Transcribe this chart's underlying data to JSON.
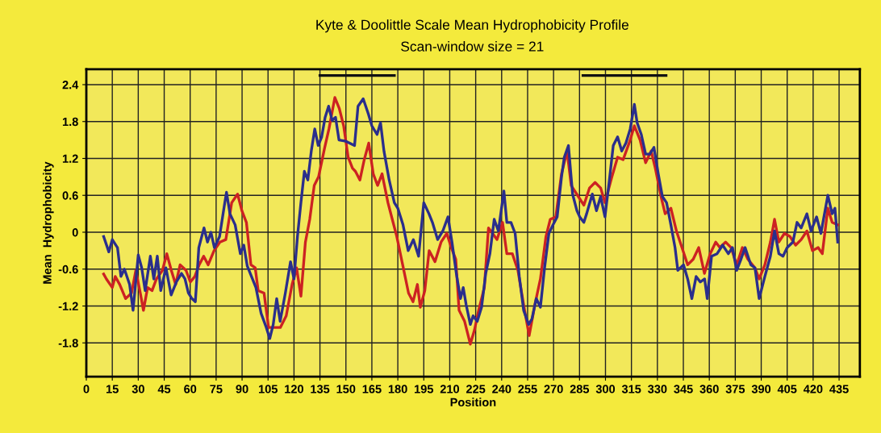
{
  "chart_data": {
    "type": "line",
    "title": "Kyte & Doolittle Scale Mean Hydrophobicity Profile",
    "subtitle": "Scan-window size = 21",
    "xlabel": "Position",
    "ylabel": "Mean  Hydrophobicity",
    "xlim": [
      0,
      447
    ],
    "ylim": [
      -2.35,
      2.65
    ],
    "xticks": [
      0,
      15,
      30,
      45,
      60,
      75,
      90,
      105,
      120,
      135,
      150,
      165,
      180,
      195,
      210,
      225,
      240,
      255,
      270,
      285,
      300,
      315,
      330,
      345,
      360,
      375,
      390,
      405,
      420,
      435
    ],
    "yticks": [
      -1.8,
      -1.2,
      -0.6,
      0,
      0.6,
      1.2,
      1.8,
      2.4
    ],
    "grid": true,
    "legend": false,
    "marker": "none",
    "line_style": "solid",
    "series": [
      {
        "color": "#111111",
        "x": [
          135,
          178
        ],
        "values": [
          2.55,
          2.55
        ]
      },
      {
        "color": "#111111",
        "x": [
          287,
          335
        ],
        "values": [
          2.55,
          2.55
        ]
      },
      {
        "color": "#cc2222",
        "x": [
          10,
          11.6,
          15,
          16.7,
          19.3,
          22.7,
          26.1,
          28.6,
          31.2,
          33,
          35.4,
          38,
          40.5,
          44,
          46.5,
          49.1,
          51.6,
          54.2,
          57.6,
          60.1,
          62.7,
          65.2,
          67.8,
          70.4,
          73.8,
          77.2,
          80.6,
          84,
          87.4,
          89.9,
          92.5,
          95.1,
          97.6,
          99.3,
          102.7,
          105.3,
          108.7,
          112.1,
          115.5,
          118.9,
          121.5,
          124,
          126.6,
          129.1,
          131.7,
          134.2,
          137.6,
          140.2,
          143.6,
          146.2,
          148.7,
          151.3,
          153.8,
          155.5,
          158.1,
          160.6,
          163.2,
          165.8,
          168.3,
          170.9,
          174.3,
          176.8,
          179.4,
          182.8,
          186.2,
          188.8,
          191.3,
          193,
          195.6,
          198.1,
          201.5,
          205,
          208.3,
          210.9,
          213.5,
          215.4,
          218.6,
          221.9,
          224.3,
          226.7,
          230,
          232.4,
          234.8,
          237.3,
          240.5,
          243,
          246.2,
          249.4,
          252.7,
          255.9,
          259.2,
          262.4,
          265.6,
          268.1,
          271.3,
          274.6,
          277.8,
          280.2,
          284.3,
          287.5,
          290.8,
          294,
          297.2,
          299.7,
          303.7,
          307,
          310.2,
          314.3,
          316.7,
          320,
          323.2,
          326.4,
          328.8,
          332.1,
          334.5,
          337.8,
          341,
          344.2,
          347.5,
          350.7,
          353.9,
          357.2,
          360.5,
          363.7,
          366.1,
          369.4,
          372.6,
          375.8,
          379.1,
          382.3,
          386.4,
          388.8,
          392.1,
          395.3,
          397.7,
          400.2,
          403.4,
          406.6,
          409.9,
          413.1,
          416.4,
          419.6,
          422.9,
          425.3,
          428.5,
          431,
          434.2
        ],
        "values": [
          -0.68,
          -0.76,
          -0.9,
          -0.72,
          -0.85,
          -1.08,
          -0.99,
          -0.62,
          -0.99,
          -1.27,
          -0.9,
          -0.95,
          -0.76,
          -0.62,
          -0.35,
          -0.62,
          -0.85,
          -0.53,
          -0.62,
          -0.81,
          -0.72,
          -0.53,
          -0.39,
          -0.53,
          -0.3,
          -0.16,
          -0.12,
          0.48,
          0.62,
          0.35,
          0.16,
          -0.53,
          -0.58,
          -0.95,
          -0.99,
          -1.55,
          -1.55,
          -1.55,
          -1.36,
          -0.85,
          -0.58,
          -1.04,
          -0.16,
          0.21,
          0.76,
          0.9,
          1.36,
          1.68,
          2.19,
          2.01,
          1.73,
          1.22,
          1.04,
          0.99,
          0.85,
          1.18,
          1.45,
          0.95,
          0.76,
          0.95,
          0.48,
          0.21,
          -0.07,
          -0.53,
          -0.99,
          -1.13,
          -0.85,
          -1.22,
          -0.95,
          -0.3,
          -0.48,
          -0.16,
          -0.02,
          -0.25,
          -0.44,
          -1.27,
          -1.45,
          -1.82,
          -1.59,
          -1.27,
          -0.9,
          0.07,
          -0.02,
          -0.12,
          0.16,
          -0.35,
          -0.35,
          -0.62,
          -1.18,
          -1.68,
          -1.18,
          -0.76,
          -0.07,
          0.21,
          0.25,
          0.95,
          1.32,
          0.76,
          0.58,
          0.44,
          0.72,
          0.81,
          0.72,
          0.48,
          0.9,
          1.22,
          1.18,
          1.5,
          1.73,
          1.5,
          1.13,
          1.32,
          1.04,
          0.58,
          0.3,
          0.39,
          0.02,
          -0.25,
          -0.53,
          -0.44,
          -0.25,
          -0.67,
          -0.35,
          -0.16,
          -0.25,
          -0.16,
          -0.25,
          -0.53,
          -0.25,
          -0.44,
          -0.58,
          -0.76,
          -0.53,
          -0.16,
          0.21,
          -0.16,
          -0.02,
          -0.07,
          -0.21,
          -0.12,
          0.02,
          -0.3,
          -0.25,
          -0.35,
          0.39,
          0.16,
          0.12
        ]
      },
      {
        "color": "#2a2e8c",
        "x": [
          10,
          13,
          15,
          18,
          20,
          22,
          25,
          27,
          30,
          32,
          34,
          37,
          39,
          41,
          43,
          46,
          49,
          52,
          55,
          57,
          59,
          61,
          63,
          65,
          68,
          70,
          72,
          74,
          77,
          80,
          81,
          83,
          86,
          89,
          91,
          93,
          96,
          98,
          101,
          104,
          106,
          108,
          110,
          112,
          115,
          118,
          120,
          122,
          124,
          126,
          128,
          130,
          132,
          134,
          136,
          138,
          140,
          142,
          144,
          146,
          150,
          155,
          157,
          160,
          163,
          165,
          168,
          170,
          172,
          175,
          178,
          180,
          183,
          186,
          189,
          192,
          195,
          198,
          200,
          203,
          206,
          209,
          211.3,
          213.8,
          216.2,
          217.8,
          219.5,
          221.9,
          223.5,
          225.9,
          228.4,
          230.8,
          233.2,
          235.7,
          238.1,
          241.3,
          243,
          245.4,
          247.8,
          250.2,
          252.7,
          255.6,
          257.5,
          260,
          262.4,
          264.8,
          267.3,
          269.7,
          272.1,
          274.6,
          276.2,
          278.6,
          281,
          283.5,
          285.1,
          287.5,
          289.1,
          292.4,
          294.8,
          297.2,
          299.7,
          302.1,
          304.5,
          307,
          309.4,
          311.8,
          314.3,
          316.7,
          318.3,
          320.7,
          323.2,
          325.6,
          328,
          330.5,
          332.9,
          335.3,
          337.8,
          340.2,
          341.8,
          345.1,
          347.5,
          349.9,
          352.4,
          354.8,
          357.3,
          358.8,
          361.3,
          364.5,
          367.7,
          371,
          373.4,
          375.8,
          378.3,
          380.7,
          384,
          386.4,
          388.8,
          392.1,
          395.3,
          397.7,
          400.2,
          402.6,
          405,
          408.3,
          410.7,
          413.1,
          416.4,
          418.8,
          422,
          424.5,
          428.5,
          431,
          432.6,
          434.2
        ],
        "values": [
          -0.07,
          -0.32,
          -0.12,
          -0.25,
          -0.72,
          -0.6,
          -0.85,
          -1.27,
          -0.37,
          -0.58,
          -0.95,
          -0.39,
          -0.76,
          -0.39,
          -0.95,
          -0.58,
          -1.02,
          -0.81,
          -0.67,
          -0.76,
          -0.99,
          -1.08,
          -1.13,
          -0.25,
          0.07,
          -0.16,
          0,
          -0.25,
          -0.07,
          0.48,
          0.65,
          0.3,
          0.12,
          -0.35,
          -0.21,
          -0.55,
          -0.76,
          -0.9,
          -1.32,
          -1.55,
          -1.73,
          -1.5,
          -1.08,
          -1.45,
          -0.99,
          -0.48,
          -0.76,
          -0.07,
          0.48,
          0.99,
          0.85,
          1.32,
          1.68,
          1.41,
          1.55,
          1.87,
          2.05,
          1.82,
          1.87,
          1.5,
          1.48,
          1.41,
          2.05,
          2.17,
          1.92,
          1.73,
          1.59,
          1.78,
          1.32,
          0.85,
          0.48,
          0.39,
          0.12,
          -0.3,
          -0.12,
          -0.39,
          0.48,
          0.3,
          0.16,
          -0.12,
          0.02,
          0.25,
          -0.16,
          -0.67,
          -1.08,
          -0.9,
          -1.18,
          -1.5,
          -1.36,
          -1.45,
          -1.22,
          -0.67,
          -0.35,
          0.21,
          0.02,
          0.67,
          0.16,
          0.16,
          -0.02,
          -0.72,
          -1.27,
          -1.5,
          -1.41,
          -1.08,
          -1.22,
          -0.58,
          -0.02,
          0.12,
          0.25,
          0.9,
          1.22,
          1.41,
          0.62,
          0.35,
          0.25,
          0.16,
          0.3,
          0.62,
          0.35,
          0.58,
          0.25,
          0.81,
          1.41,
          1.55,
          1.32,
          1.45,
          1.68,
          2.08,
          1.78,
          1.59,
          1.27,
          1.27,
          1.38,
          0.95,
          0.58,
          0.48,
          0.12,
          -0.25,
          -0.62,
          -0.53,
          -0.76,
          -1.08,
          -0.72,
          -0.81,
          -0.76,
          -1.08,
          -0.39,
          -0.35,
          -0.21,
          -0.35,
          -0.25,
          -0.62,
          -0.44,
          -0.25,
          -0.53,
          -0.58,
          -1.08,
          -0.72,
          -0.39,
          0.02,
          -0.35,
          -0.39,
          -0.25,
          -0.16,
          0.16,
          0.07,
          0.3,
          0.02,
          0.25,
          -0.02,
          0.6,
          0.3,
          0.39,
          -0.16
        ]
      }
    ]
  }
}
